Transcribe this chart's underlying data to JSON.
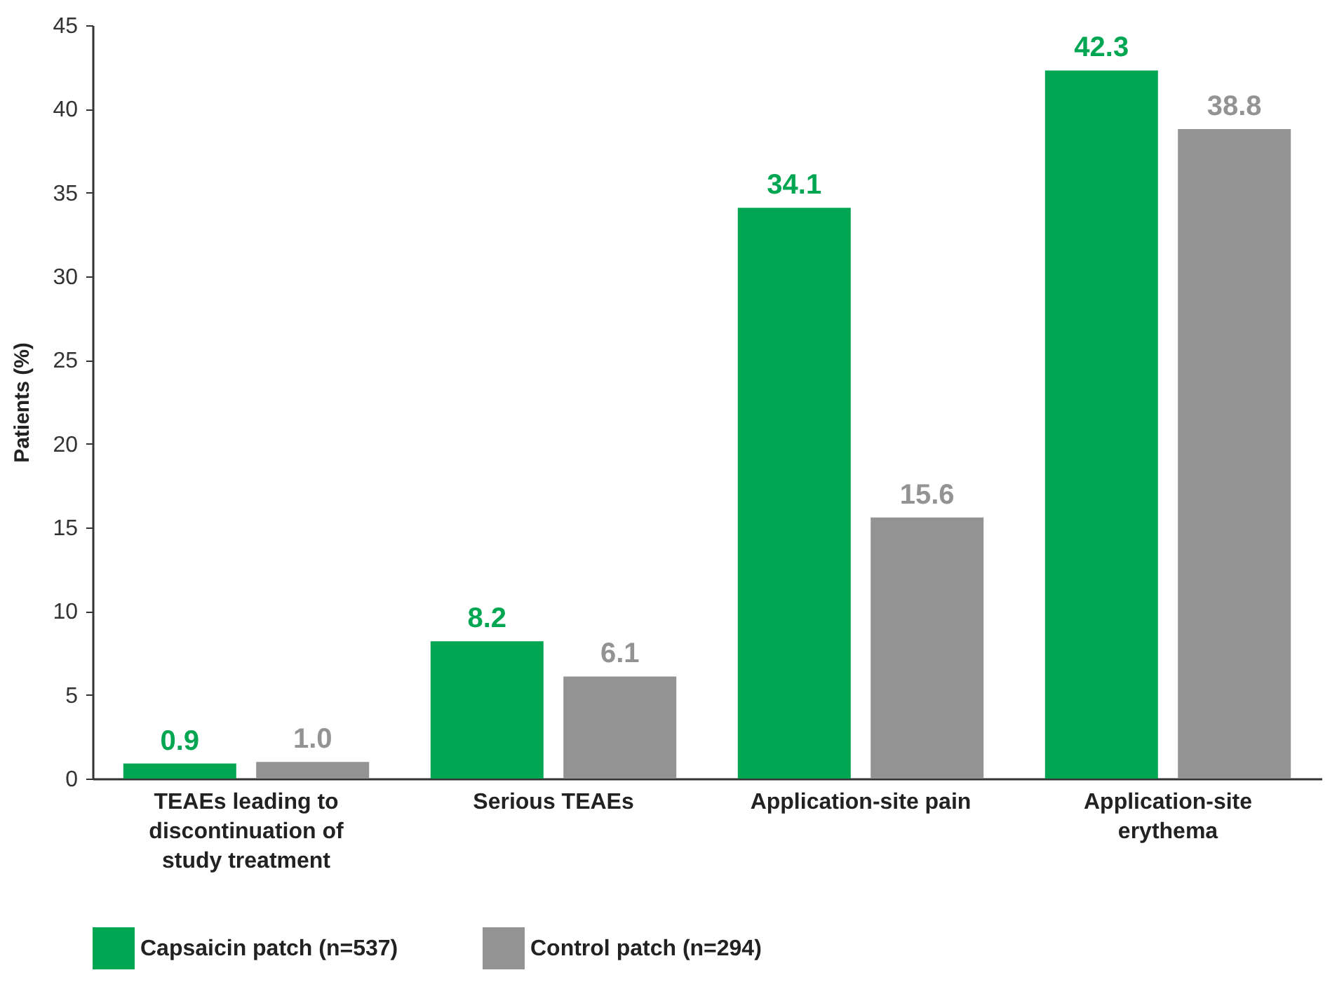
{
  "chart_data": {
    "type": "bar",
    "ylabel": "Patients (%)",
    "categories": [
      "TEAEs leading to discontinuation of study treatment",
      "Serious TEAEs",
      "Application-site pain",
      "Application-site erythema"
    ],
    "series": [
      {
        "name": "Capsaicin patch (n=537)",
        "color": "#00a651",
        "values": [
          0.9,
          8.2,
          34.1,
          42.3
        ],
        "value_labels": [
          "0.9",
          "8.2",
          "34.1",
          "42.3"
        ]
      },
      {
        "name": "Control patch (n=294)",
        "color": "#939393",
        "values": [
          1.0,
          6.1,
          15.6,
          38.8
        ],
        "value_labels": [
          "1.0",
          "6.1",
          "15.6",
          "38.8"
        ]
      }
    ],
    "ylim": [
      0,
      45
    ],
    "yticks": [
      0,
      5,
      10,
      15,
      20,
      25,
      30,
      35,
      40,
      45
    ],
    "grid": false,
    "legend": "bottom"
  }
}
